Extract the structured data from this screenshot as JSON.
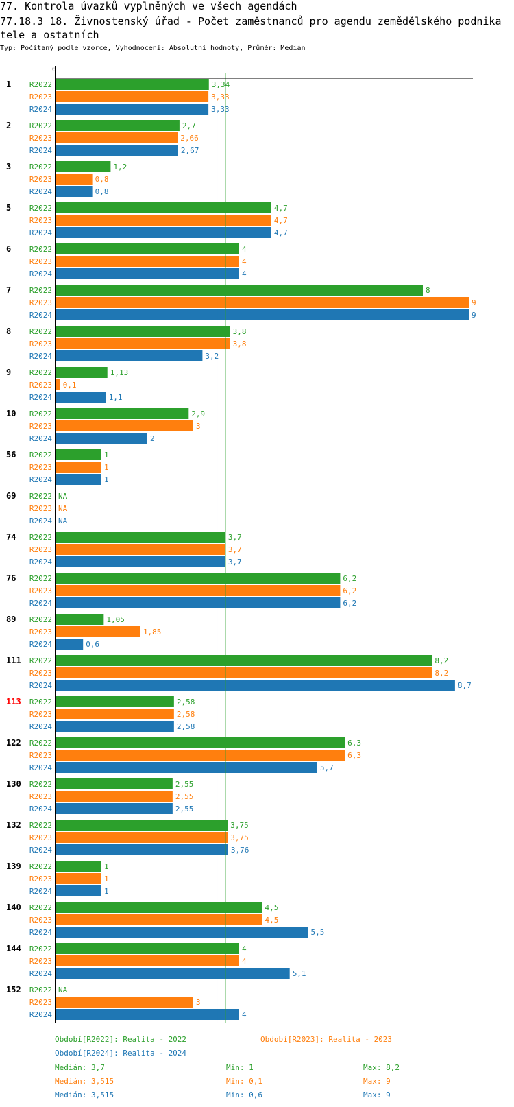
{
  "header": {
    "title1": "77. Kontrola úvazků vyplněných ve všech agendách",
    "title2": "77.18.3 18. Živnostenský úřad - Počet zaměstnanců pro agendu zemědělského podnika",
    "title3": "tele a ostatních",
    "subtitle": "Typ: Počítaný podle vzorce, Vyhodnocení: Absolutní hodnoty, Průměr: Medián"
  },
  "colors": {
    "R2022": "#2ca02c",
    "R2023": "#ff7f0e",
    "R2024": "#1f77b4",
    "highlight": "#ff0000"
  },
  "chart_data": {
    "type": "bar",
    "orientation": "horizontal",
    "x_tick_labels": [
      "0"
    ],
    "xlim": [
      0,
      9
    ],
    "series_names": [
      "R2022",
      "R2023",
      "R2024"
    ],
    "highlighted_category": "113",
    "categories": [
      "1",
      "2",
      "3",
      "5",
      "6",
      "7",
      "8",
      "9",
      "10",
      "56",
      "69",
      "74",
      "76",
      "89",
      "111",
      "113",
      "122",
      "130",
      "132",
      "139",
      "140",
      "144",
      "152"
    ],
    "series": [
      {
        "name": "R2022",
        "values": [
          3.34,
          2.7,
          1.2,
          4.7,
          4,
          8,
          3.8,
          1.13,
          2.9,
          1,
          null,
          3.7,
          6.2,
          1.05,
          8.2,
          2.58,
          6.3,
          2.55,
          3.75,
          1,
          4.5,
          4,
          null
        ],
        "labels": [
          "3,34",
          "2,7",
          "1,2",
          "4,7",
          "4",
          "8",
          "3,8",
          "1,13",
          "2,9",
          "1",
          "NA",
          "3,7",
          "6,2",
          "1,05",
          "8,2",
          "2,58",
          "6,3",
          "2,55",
          "3,75",
          "1",
          "4,5",
          "4",
          "NA"
        ]
      },
      {
        "name": "R2023",
        "values": [
          3.33,
          2.66,
          0.8,
          4.7,
          4,
          9,
          3.8,
          0.1,
          3,
          1,
          null,
          3.7,
          6.2,
          1.85,
          8.2,
          2.58,
          6.3,
          2.55,
          3.75,
          1,
          4.5,
          4,
          3
        ],
        "labels": [
          "3,33",
          "2,66",
          "0,8",
          "4,7",
          "4",
          "9",
          "3,8",
          "0,1",
          "3",
          "1",
          "NA",
          "3,7",
          "6,2",
          "1,85",
          "8,2",
          "2,58",
          "6,3",
          "2,55",
          "3,75",
          "1",
          "4,5",
          "4",
          "3"
        ]
      },
      {
        "name": "R2024",
        "values": [
          3.33,
          2.67,
          0.8,
          4.7,
          4,
          9,
          3.2,
          1.1,
          2,
          1,
          null,
          3.7,
          6.2,
          0.6,
          8.7,
          2.58,
          5.7,
          2.55,
          3.76,
          1,
          5.5,
          5.1,
          4
        ],
        "labels": [
          "3,33",
          "2,67",
          "0,8",
          "4,7",
          "4",
          "9",
          "3,2",
          "1,1",
          "2",
          "1",
          "NA",
          "3,7",
          "6,2",
          "0,6",
          "8,7",
          "2,58",
          "5,7",
          "2,55",
          "3,76",
          "1",
          "5,5",
          "5,1",
          "4"
        ]
      }
    ],
    "reference_lines": [
      {
        "series": "R2024",
        "value": 3.515
      },
      {
        "series": "R2022",
        "value": 3.7
      }
    ],
    "legend": {
      "periods": [
        "Období[R2022]: Realita - 2022",
        "Období[R2023]: Realita - 2023",
        "Období[R2024]: Realita - 2024"
      ],
      "stats": [
        {
          "median": "Medián: 3,7",
          "min": "Min: 1",
          "max": "Max: 8,2"
        },
        {
          "median": "Medián: 3,515",
          "min": "Min: 0,1",
          "max": "Max: 9"
        },
        {
          "median": "Medián: 3,515",
          "min": "Min: 0,6",
          "max": "Max: 9"
        }
      ],
      "placement": "bottom"
    }
  }
}
